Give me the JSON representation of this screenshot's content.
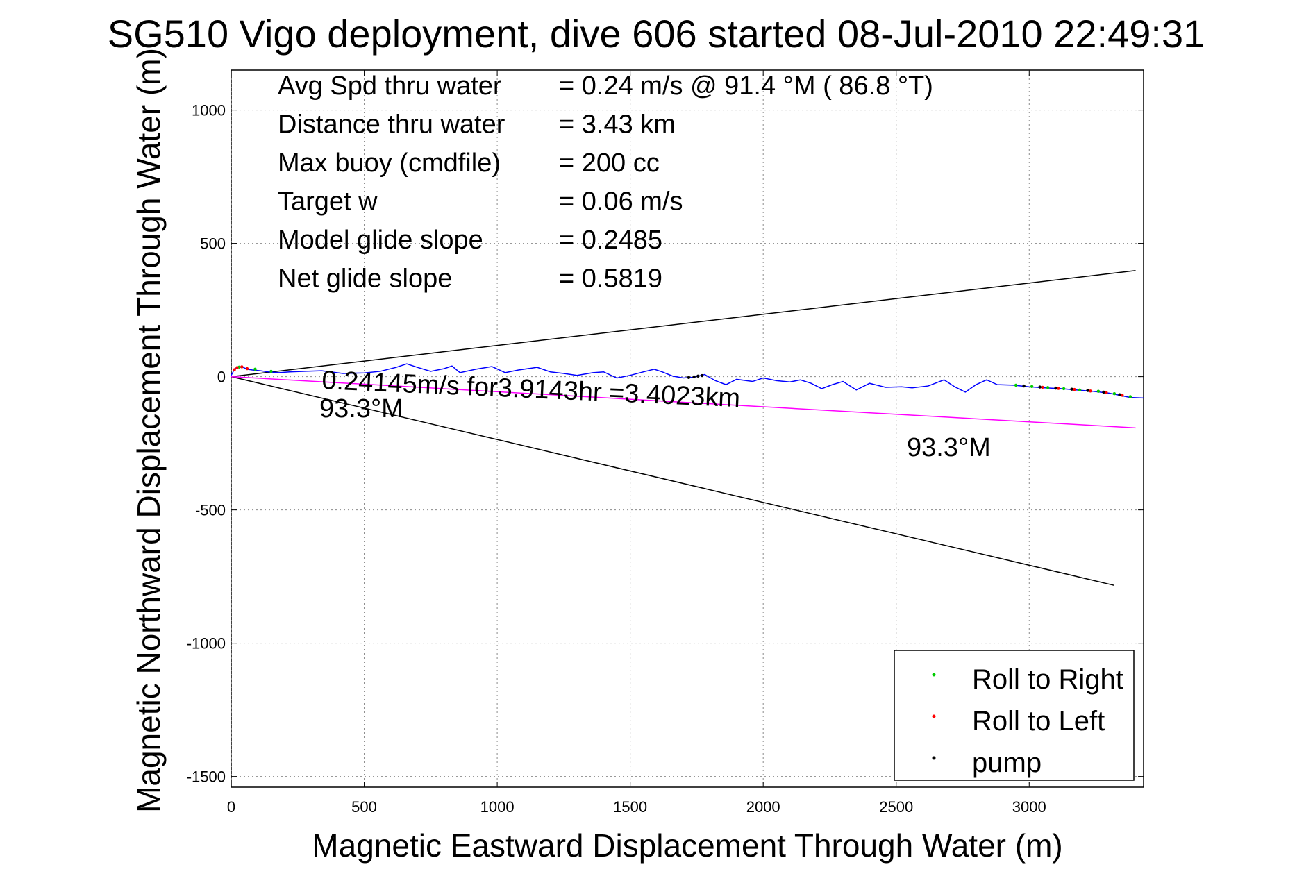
{
  "chart_data": {
    "type": "line",
    "title": "SG510 Vigo deployment, dive 606 started 08-Jul-2010 22:49:31",
    "xlabel": "Magnetic Eastward Displacement Through Water (m)",
    "ylabel": "Magnetic Northward Displacement Through Water (m)",
    "xlim": [
      0,
      3430
    ],
    "ylim": [
      -1540,
      1150
    ],
    "xticks": [
      0,
      500,
      1000,
      1500,
      2000,
      2500,
      3000
    ],
    "yticks": [
      1000,
      500,
      0,
      -500,
      -1000,
      -1500
    ],
    "grid": true,
    "legend_position": "bottom-right",
    "colors": {
      "track": "#0000ff",
      "heading_line": "#ff00ff",
      "envelope": "#000000",
      "roll_right": "#00cc00",
      "roll_left": "#ff0000",
      "pump": "#000000"
    },
    "info_lines": [
      {
        "label": "Avg Spd thru water",
        "value": "=  0.24 m/s @  91.4 °M ( 86.8 °T)"
      },
      {
        "label": "Distance thru water",
        "value": "=  3.43 km"
      },
      {
        "label": "Max buoy (cmdfile)",
        "value": "= 200 cc"
      },
      {
        "label": "Target w",
        "value": "= 0.06 m/s"
      },
      {
        "label": "Model glide slope",
        "value": "= 0.2485"
      },
      {
        "label": "Net glide slope",
        "value": "= 0.5819"
      }
    ],
    "annotations": {
      "speed_text": "0.24145m/s for3.9143hr =3.4023km",
      "heading_left": "93.3°M",
      "heading_right": "93.3°M"
    },
    "legend": [
      {
        "key": "roll_right",
        "label": "Roll to Right"
      },
      {
        "key": "roll_left",
        "label": "Roll to Left"
      },
      {
        "key": "pump",
        "label": "pump"
      }
    ],
    "envelope_upper": {
      "x": [
        0,
        3400
      ],
      "y": [
        0,
        398
      ]
    },
    "envelope_lower": {
      "x": [
        0,
        3320
      ],
      "y": [
        0,
        -783
      ]
    },
    "heading_line": {
      "x": [
        0,
        3400
      ],
      "y": [
        0,
        -192
      ]
    },
    "track": {
      "x": [
        0,
        8,
        18,
        30,
        45,
        60,
        80,
        110,
        140,
        180,
        220,
        280,
        340,
        420,
        500,
        560,
        620,
        660,
        700,
        750,
        800,
        830,
        860,
        920,
        980,
        1030,
        1080,
        1150,
        1200,
        1250,
        1300,
        1360,
        1400,
        1450,
        1500,
        1550,
        1590,
        1620,
        1660,
        1700,
        1740,
        1780,
        1820,
        1860,
        1900,
        1960,
        2000,
        2050,
        2100,
        2140,
        2180,
        2220,
        2260,
        2300,
        2350,
        2400,
        2460,
        2520,
        2560,
        2620,
        2680,
        2720,
        2760,
        2800,
        2840,
        2880,
        2940,
        3000,
        3060,
        3120,
        3180,
        3240,
        3300,
        3340,
        3380,
        3430
      ],
      "y": [
        5,
        20,
        32,
        38,
        35,
        28,
        25,
        22,
        18,
        15,
        18,
        20,
        22,
        12,
        14,
        20,
        35,
        48,
        35,
        20,
        30,
        40,
        15,
        28,
        38,
        15,
        25,
        35,
        18,
        12,
        5,
        15,
        18,
        -5,
        5,
        18,
        28,
        18,
        2,
        -5,
        -2,
        8,
        -15,
        -30,
        -10,
        -18,
        -5,
        -15,
        -20,
        -12,
        -25,
        -45,
        -30,
        -18,
        -50,
        -25,
        -40,
        -38,
        -42,
        -35,
        -12,
        -38,
        -58,
        -30,
        -12,
        -30,
        -32,
        -38,
        -42,
        -45,
        -50,
        -55,
        -62,
        -70,
        -78,
        -80
      ]
    },
    "markers_roll_right": {
      "x": [
        30,
        90,
        150,
        2950,
        3010,
        3070,
        3130,
        3190,
        3260,
        3320,
        3380
      ],
      "y": [
        36,
        28,
        20,
        -32,
        -37,
        -41,
        -45,
        -50,
        -55,
        -64,
        -75
      ]
    },
    "markers_roll_left": {
      "x": [
        12,
        22,
        40,
        60,
        3050,
        3110,
        3170,
        3230,
        3290,
        3350
      ],
      "y": [
        26,
        34,
        37,
        30,
        -40,
        -44,
        -48,
        -54,
        -60,
        -70
      ]
    },
    "markers_pump": {
      "x": [
        1720,
        1740,
        1755,
        1770,
        2980,
        3040,
        3100,
        3160,
        3220,
        3280,
        3340
      ],
      "y": [
        -3,
        -1,
        2,
        4,
        -35,
        -39,
        -43,
        -47,
        -52,
        -58,
        -68
      ]
    }
  }
}
